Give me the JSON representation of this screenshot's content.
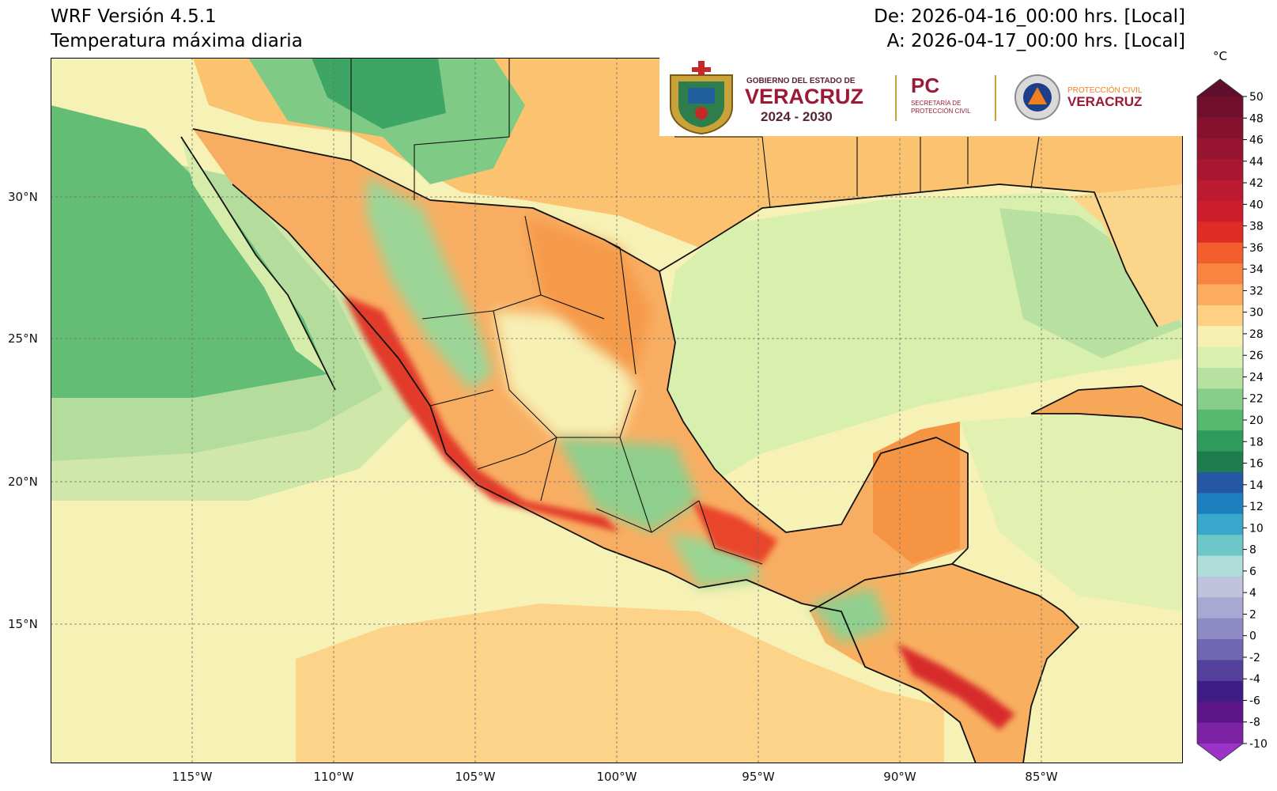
{
  "header": {
    "model": "WRF Versión 4.5.1",
    "variable": "Temperatura máxima diaria",
    "from": "De: 2026-04-16_00:00 hrs. [Local]",
    "to": "A: 2026-04-17_00:00 hrs. [Local]"
  },
  "map": {
    "lat_labels": [
      "30°N",
      "25°N",
      "20°N",
      "15°N"
    ],
    "lon_labels": [
      "115°W",
      "110°W",
      "105°W",
      "100°W",
      "95°W",
      "90°W",
      "85°W"
    ],
    "lon_range": [
      -120,
      -80
    ],
    "lat_range": [
      10,
      35
    ]
  },
  "colorbar": {
    "unit": "°C",
    "ticks": [
      "50",
      "48",
      "46",
      "44",
      "42",
      "40",
      "38",
      "36",
      "34",
      "32",
      "30",
      "28",
      "26",
      "24",
      "22",
      "20",
      "18",
      "16",
      "14",
      "12",
      "10",
      "8",
      "6",
      "4",
      "2",
      "0",
      "-2",
      "-4",
      "-6",
      "-8",
      "-10"
    ],
    "colors": [
      "#5d0f2b",
      "#71102d",
      "#85112f",
      "#961430",
      "#a81631",
      "#bb1a32",
      "#cc1d2d",
      "#e02c27",
      "#f35e2d",
      "#f8853f",
      "#fbac5e",
      "#fdd083",
      "#f6f0b3",
      "#dbefb0",
      "#b6e1a0",
      "#86ce8a",
      "#57b86f",
      "#2e9a5c",
      "#1f7c4c",
      "#2557a3",
      "#1d7fbe",
      "#3aa8cd",
      "#6bc7c8",
      "#aeddda",
      "#c1c2dc",
      "#a8a8d2",
      "#8e8ac4",
      "#6f68b1",
      "#55409d",
      "#3e1e86",
      "#5d1688",
      "#7d21a5",
      "#9c33c8"
    ]
  },
  "logos": {
    "gov_line1": "GOBIERNO DEL ESTADO DE",
    "gov_line2": "VERACRUZ",
    "gov_years": "2024 - 2030",
    "pc_big": "PC",
    "pc_line1": "SECRETARÍA DE",
    "pc_line2": "PROTECCIÓN CIVIL",
    "prot_line1": "PROTECCIÓN CIVIL",
    "prot_line2": "VERACRUZ"
  }
}
